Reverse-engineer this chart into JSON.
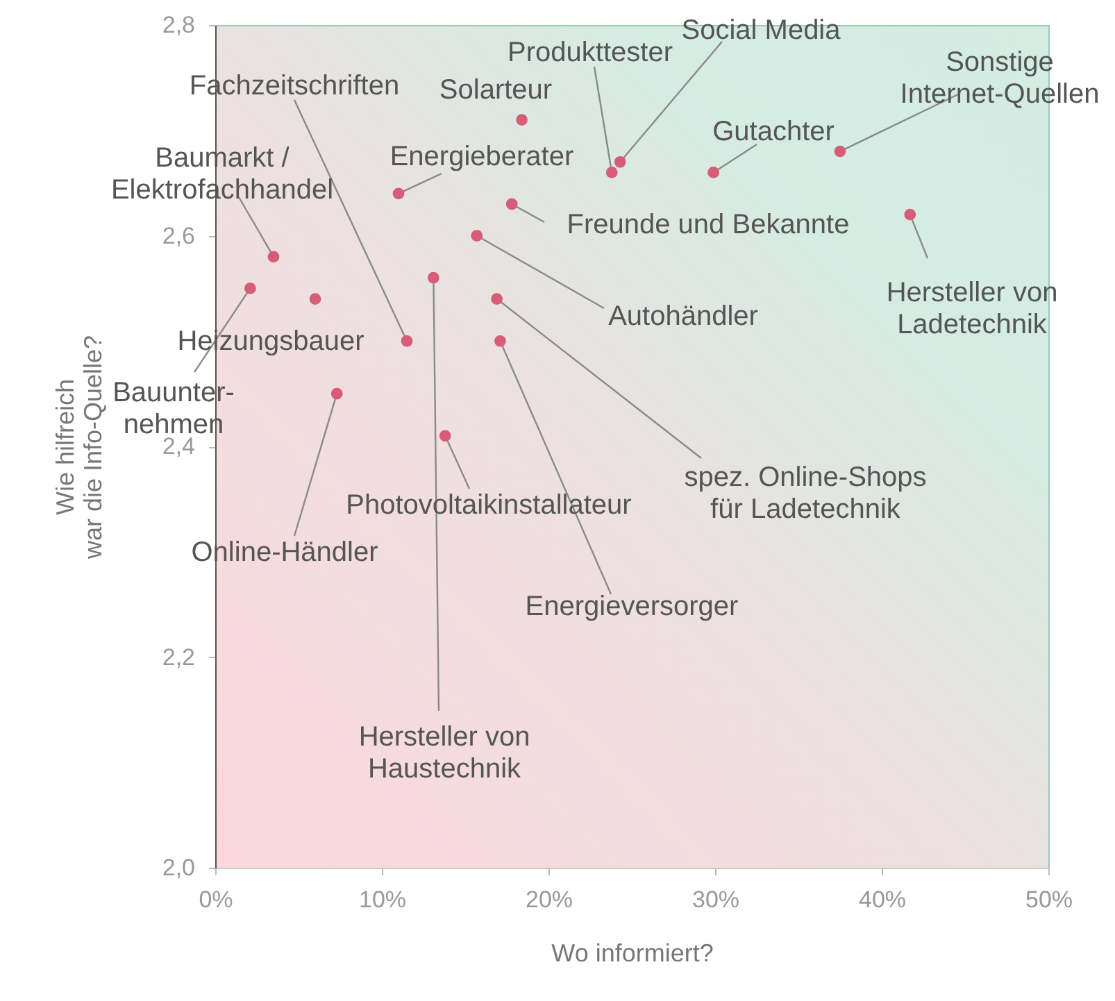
{
  "chart_data": {
    "type": "scatter",
    "xlabel": "Wo informiert?",
    "ylabel": "Wie hilfreich\nwar die Info-Quelle?",
    "xlim": [
      0,
      50
    ],
    "ylim": [
      2.0,
      2.8
    ],
    "xticks": [
      {
        "value": 0,
        "label": "0%"
      },
      {
        "value": 10,
        "label": "10%"
      },
      {
        "value": 20,
        "label": "20%"
      },
      {
        "value": 30,
        "label": "30%"
      },
      {
        "value": 40,
        "label": "40%"
      },
      {
        "value": 50,
        "label": "50%"
      }
    ],
    "yticks": [
      {
        "value": 2.0,
        "label": "2,0"
      },
      {
        "value": 2.2,
        "label": "2,2"
      },
      {
        "value": 2.4,
        "label": "2,4"
      },
      {
        "value": 2.6,
        "label": "2,6"
      },
      {
        "value": 2.8,
        "label": "2,8"
      }
    ],
    "grid": false,
    "marker": "circle",
    "series": [
      {
        "color": "#d65c78",
        "x": [
          11.5,
          18.4,
          23.8,
          24.3,
          37.5,
          29.9,
          11.0,
          17.8,
          41.7,
          15.7,
          3.5,
          6.0,
          2.1,
          7.3,
          13.8,
          16.9,
          17.1,
          13.1
        ],
        "values": [
          2.5,
          2.71,
          2.66,
          2.67,
          2.68,
          2.66,
          2.64,
          2.63,
          2.62,
          2.6,
          2.58,
          2.54,
          2.55,
          2.45,
          2.41,
          2.54,
          2.5,
          2.56
        ]
      }
    ],
    "annotations": [
      {
        "text": "Fachzeitschriften",
        "x": 11.5,
        "y": 2.5
      },
      {
        "text": "Solarteur",
        "x": 18.4,
        "y": 2.71
      },
      {
        "text": "Produkttester",
        "x": 23.8,
        "y": 2.66
      },
      {
        "text": "Social Media",
        "x": 24.3,
        "y": 2.67
      },
      {
        "text": "Sonstige Internet-Quellen",
        "x": 37.5,
        "y": 2.68
      },
      {
        "text": "Gutachter",
        "x": 29.9,
        "y": 2.66
      },
      {
        "text": "Energieberater",
        "x": 11.0,
        "y": 2.64
      },
      {
        "text": "Freunde und Bekannte",
        "x": 17.8,
        "y": 2.63
      },
      {
        "text": "Hersteller von Ladetechnik",
        "x": 41.7,
        "y": 2.62
      },
      {
        "text": "Autohändler",
        "x": 15.7,
        "y": 2.6
      },
      {
        "text": "Baumarkt / Elektrofachhandel",
        "x": 3.5,
        "y": 2.58
      },
      {
        "text": "Heizungsbauer",
        "x": 6.0,
        "y": 2.54
      },
      {
        "text": "Bauunter-nehmen",
        "x": 2.1,
        "y": 2.55
      },
      {
        "text": "Online-Händler",
        "x": 7.3,
        "y": 2.45
      },
      {
        "text": "Photovoltaikinstallateur",
        "x": 13.8,
        "y": 2.41
      },
      {
        "text": "spez. Online-Shops für Ladetechnik",
        "x": 16.9,
        "y": 2.54
      },
      {
        "text": "Energieversorger",
        "x": 17.1,
        "y": 2.5
      },
      {
        "text": "Hersteller von Haustechnik",
        "x": 13.1,
        "y": 2.56
      }
    ]
  }
}
